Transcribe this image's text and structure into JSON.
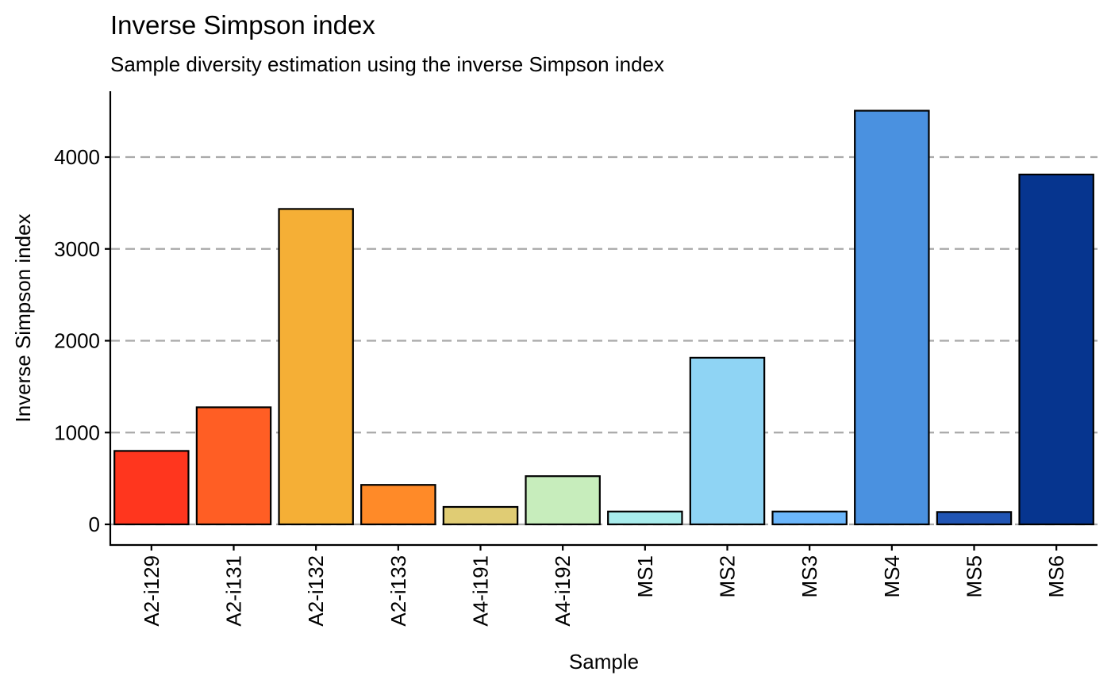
{
  "chart_data": {
    "type": "bar",
    "title": "Inverse Simpson index",
    "subtitle": "Sample diversity estimation using the inverse Simpson index",
    "xlabel": "Sample",
    "ylabel": "Inverse Simpson index",
    "categories": [
      "A2-i129",
      "A2-i131",
      "A2-i132",
      "A2-i133",
      "A4-i191",
      "A4-i192",
      "MS1",
      "MS2",
      "MS3",
      "MS4",
      "MS5",
      "MS6"
    ],
    "values": [
      800,
      1275,
      3435,
      430,
      190,
      525,
      140,
      1815,
      140,
      4505,
      135,
      3810
    ],
    "colors": [
      "#FF361E",
      "#FF5E24",
      "#F5AF36",
      "#FF8A28",
      "#E0CC74",
      "#C7EDBC",
      "#A8ECEC",
      "#8FD4F4",
      "#6BB6FB",
      "#4A91E0",
      "#2155B4",
      "#06358F"
    ],
    "yticks": [
      0,
      1000,
      2000,
      3000,
      4000
    ],
    "ylim": [
      -220,
      4750
    ],
    "grid": "horizontal dashed major lines",
    "legend": "none"
  }
}
